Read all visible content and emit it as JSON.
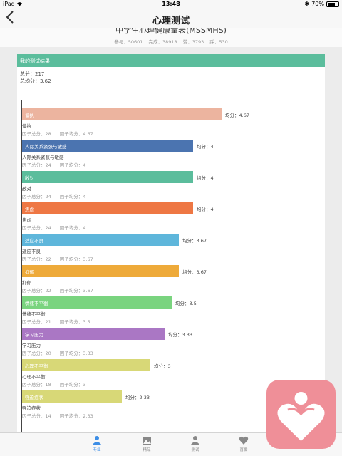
{
  "status_bar": {
    "device": "iPad",
    "time": "13:48",
    "battery": "70%",
    "battery_level": 0.7
  },
  "nav": {
    "title": "心理测试"
  },
  "subhead": {
    "test_title": "中学生心理健康量表(MSSMHS)",
    "stats": [
      "参与：50601",
      "完成：38918",
      "赞：3793",
      "踩：530"
    ]
  },
  "card": {
    "header": "我的测试结果",
    "total_label": "总分：217",
    "avg_label": "总均分：3.62"
  },
  "colors": {
    "header": "#5bbd9c",
    "active_tab": "#3d8ee6",
    "floating": "#ef8f98"
  },
  "chart_data": {
    "type": "bar",
    "orientation": "horizontal",
    "xlim": [
      0,
      5
    ],
    "categories": [
      "偏执",
      "人际关系紧张与敏感",
      "敌对",
      "焦虑",
      "适应不良",
      "抑郁",
      "情绪不平衡",
      "学习压力",
      "心理不平衡",
      "强迫症状"
    ],
    "values": [
      4.67,
      4,
      4,
      4,
      3.67,
      3.67,
      3.5,
      3.33,
      3,
      2.33
    ],
    "factor_totals": [
      28,
      24,
      24,
      24,
      22,
      22,
      21,
      20,
      18,
      14
    ],
    "bar_colors": [
      "#ecb49f",
      "#4b74b0",
      "#5bbd9c",
      "#ee7744",
      "#5eb6db",
      "#eeaa3a",
      "#7ad47f",
      "#aa77c4",
      "#d8d877",
      "#d8d877"
    ],
    "avg_prefix": "均分：",
    "factor_total_prefix": "因子总分：",
    "factor_avg_prefix": "因子均分："
  },
  "tabs": [
    {
      "label": "专业",
      "icon": "person-icon",
      "active": true
    },
    {
      "label": "精品",
      "icon": "scenery-icon",
      "active": false
    },
    {
      "label": "测试",
      "icon": "profile-icon",
      "active": false
    },
    {
      "label": "喜爱",
      "icon": "heart-icon",
      "active": false
    }
  ],
  "floating_button": {
    "icon": "heart-person-icon"
  }
}
